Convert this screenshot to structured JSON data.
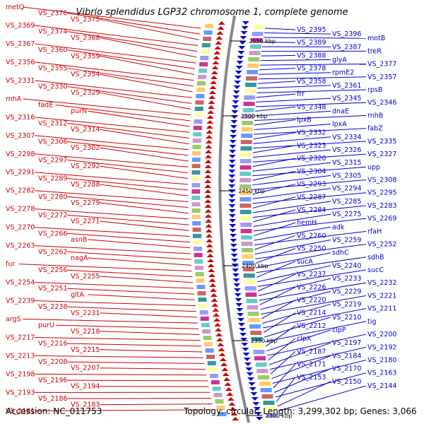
{
  "title": "Vibrio splendidus LGP32 chromosome 1, complete genome",
  "footer": {
    "accession": "Accession: NC_011753",
    "topology": "Topology: circular; Length: 3,299,302 bp; Genes: 3,066"
  },
  "colors": {
    "left_strand": "#cc0000",
    "right_strand": "#0000cc",
    "axis": "#888888"
  },
  "kbp_labels": [
    "2550 kbp",
    "2500 kbp",
    "2450 kbp",
    "2400 kbp",
    "2350 kbp",
    "2300 kbp"
  ],
  "left_labels": [
    "metQ",
    "VS_2376",
    "VS_2375",
    "VS_2369",
    "VS_2374",
    "VS_2368",
    "VS_2367",
    "VS_2360",
    "VS_2359",
    "VS_2356",
    "VS_2355",
    "VS_2354",
    "VS_2331",
    "VS_2330",
    "VS_2329",
    "rnhA",
    "fadE",
    "purN",
    "VS_2316",
    "VS_2312",
    "VS_2314",
    "VS_2307",
    "VS_2306",
    "VS_2302",
    "VS_2298",
    "VS_2297",
    "VS_2292",
    "VS_2291",
    "VS_2289",
    "VS_2288",
    "VS_2282",
    "VS_2280",
    "VS_2279",
    "VS_2278",
    "VS_2272",
    "VS_2271",
    "VS_2270",
    "VS_2266",
    "asnB",
    "VS_2263",
    "VS_2262",
    "nagA",
    "fur",
    "VS_2256",
    "VS_2255",
    "VS_2254",
    "VS_2251",
    "gltA",
    "VS_2239",
    "VS_2238",
    "VS_2231",
    "argS",
    "purU",
    "VS_2218",
    "VS_2217",
    "VS_2216",
    "VS_2215",
    "VS_2213",
    "VS_2208",
    "VS_2207",
    "VS_2198",
    "VS_2196",
    "VS_2194",
    "VS_2193",
    "VS_2186",
    "VS_2183",
    "VS_2181"
  ],
  "right_labels": [
    "VS_2395",
    "VS_2396",
    "motB",
    "VS_2389",
    "VS_2387",
    "treR",
    "VS_2388",
    "glyA",
    "VS_2377",
    "VS_2378",
    "rpmE2",
    "VS_2357",
    "VS_2358",
    "VS_2361",
    "rpsB",
    "frr",
    "VS_2345",
    "VS_2346",
    "VS_2348",
    "dnaE",
    "rnhB",
    "lpxB",
    "lpxA",
    "fabZ",
    "VS_2332",
    "VS_2334",
    "VS_2335",
    "VS_2323",
    "VS_2326",
    "VS_2327",
    "VS_2320",
    "VS_2315",
    "upp",
    "VS_2304",
    "VS_2305",
    "VS_2308",
    "VS_2293",
    "VS_2294",
    "VS_2295",
    "VS_2287",
    "VS_2285",
    "VS_2283",
    "VS_2284",
    "VS_2275",
    "VS_2269",
    "hemH",
    "adk",
    "rfaH",
    "VS_2260",
    "VS_2259",
    "VS_2252",
    "VS_2250",
    "sdhC",
    "sdhB",
    "sucA",
    "VS_2240",
    "sucC",
    "VS_2237",
    "VS_2233",
    "VS_2232",
    "VS_2226",
    "VS_2229",
    "VS_2221",
    "VS_2220",
    "VS_2219",
    "VS_2211",
    "VS_2214",
    "VS_2210",
    "tig",
    "VS_2212",
    "clpP",
    "VS_2200",
    "clpX",
    "VS_2197",
    "VS_2192",
    "VS_2187",
    "VS_2184",
    "VS_2180",
    "VS_2171",
    "VS_2170",
    "VS_2163",
    "VS_2153",
    "VS_2150",
    "VS_2144"
  ]
}
